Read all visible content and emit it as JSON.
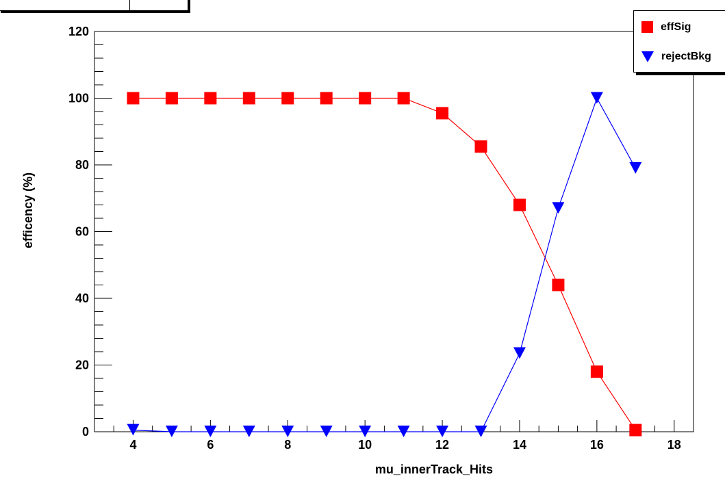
{
  "chart_data": {
    "type": "line",
    "title": "",
    "xlabel": "mu_innerTrack_Hits",
    "ylabel": "efficency (%)",
    "xlim": [
      3,
      18.5
    ],
    "ylim": [
      0,
      120
    ],
    "x_ticks": [
      4,
      6,
      8,
      10,
      12,
      14,
      16,
      18
    ],
    "y_ticks": [
      0,
      20,
      40,
      60,
      80,
      100,
      120
    ],
    "grid": false,
    "legend_position": "top-right",
    "x": [
      4,
      5,
      6,
      7,
      8,
      9,
      10,
      11,
      12,
      13,
      14,
      15,
      16,
      17
    ],
    "series": [
      {
        "name": "effSig",
        "color": "#ff0000",
        "marker": "square",
        "values": [
          100,
          100,
          100,
          100,
          100,
          100,
          100,
          100,
          95.5,
          85.5,
          68,
          44,
          18,
          0.5
        ]
      },
      {
        "name": "rejectBkg",
        "color": "#0000ff",
        "marker": "triangle-down",
        "values": [
          0.5,
          0,
          0,
          0,
          0,
          0,
          0,
          0,
          0,
          0,
          23.5,
          67,
          100,
          79
        ]
      }
    ]
  },
  "legend": {
    "items": [
      {
        "label": "effSig",
        "icon": "red-square-marker"
      },
      {
        "label": "rejectBkg",
        "icon": "blue-triangle-marker"
      }
    ]
  }
}
